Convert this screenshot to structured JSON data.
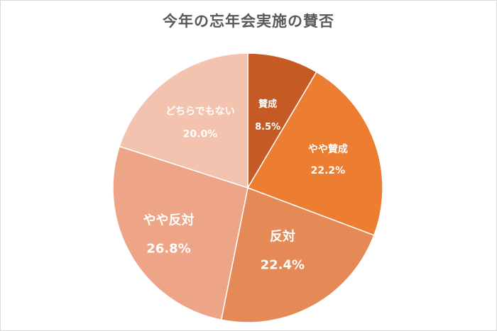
{
  "chart_data": {
    "type": "pie",
    "title": "今年の忘年会実施の賛否",
    "slices": [
      {
        "label": "賛成",
        "value_label": "8.5%",
        "value": 8.5,
        "color": "#c55a24"
      },
      {
        "label": "やや賛成",
        "value_label": "22.2%",
        "value": 22.2,
        "color": "#ed7d31"
      },
      {
        "label": "反対",
        "value_label": "22.4%",
        "value": 22.4,
        "color": "#e58957"
      },
      {
        "label": "やや反対",
        "value_label": "26.8%",
        "value": 26.8,
        "color": "#eea587"
      },
      {
        "label": "どちらでもない",
        "value_label": "20.0%",
        "value": 20.0,
        "color": "#f3c3af"
      }
    ]
  }
}
